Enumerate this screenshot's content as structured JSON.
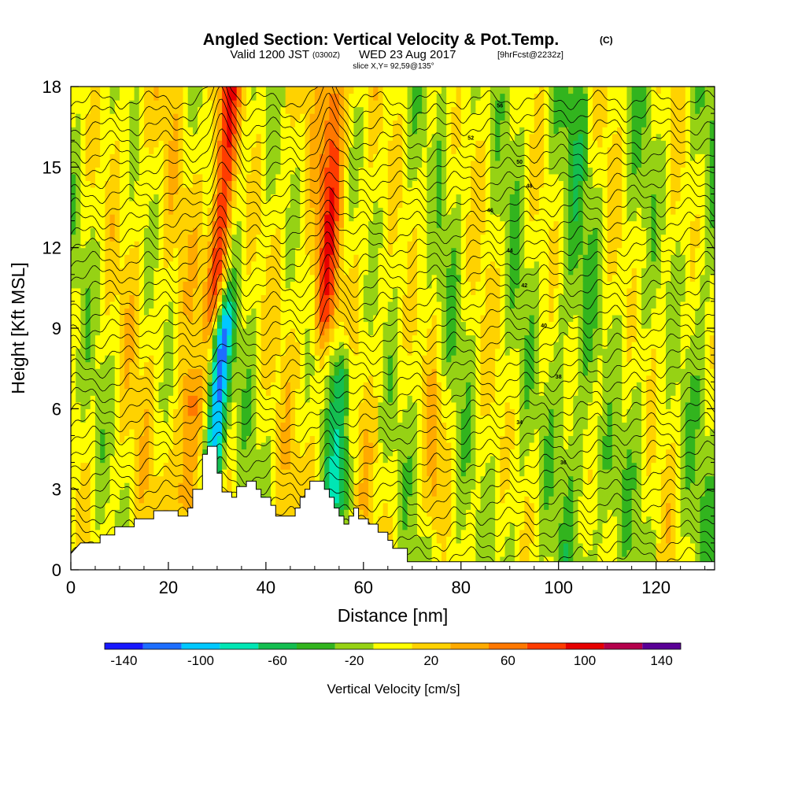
{
  "chart_data": {
    "type": "heatmap",
    "title": {
      "main": "Angled Section: Vertical Velocity & Pot.Temp.",
      "unit_tag": "(C)",
      "valid_prefix": "Valid 1200 JST",
      "valid_utc": "(0300Z)",
      "valid_date": "WED 23 Aug 2017",
      "forecast": "[9hrFcst@2232z]",
      "slice": "slice X,Y= 92,59@135°"
    },
    "xlabel": "Distance [nm]",
    "ylabel": "Height [Kft MSL]",
    "xlim": [
      0,
      132
    ],
    "ylim": [
      0,
      18
    ],
    "x_ticks": [
      0,
      20,
      40,
      60,
      80,
      100,
      120
    ],
    "y_ticks": [
      0,
      3,
      6,
      9,
      12,
      15,
      18
    ],
    "colorbar": {
      "label": "Vertical Velocity [cm/s]",
      "bins": [
        -150,
        -130,
        -110,
        -90,
        -70,
        -50,
        -30,
        -10,
        10,
        30,
        50,
        70,
        90,
        110,
        130,
        150
      ],
      "colors": [
        "#1818ff",
        "#1e6eff",
        "#00c8ff",
        "#00e6b4",
        "#14be50",
        "#32b41e",
        "#96d214",
        "#ffff00",
        "#ffd200",
        "#ffaa00",
        "#ff7800",
        "#ff3c00",
        "#e60000",
        "#b4004b",
        "#5a0096"
      ],
      "tick_labels": [
        "-140",
        "-100",
        "-60",
        "-20",
        "20",
        "60",
        "100",
        "140"
      ],
      "tick_values": [
        -140,
        -100,
        -60,
        -20,
        20,
        60,
        100,
        140
      ]
    },
    "vertical_velocity_features": [
      {
        "x": 0,
        "center_kft": 9,
        "value": 10
      },
      {
        "x": 31,
        "kft_range": [
          10,
          18
        ],
        "value": 100
      },
      {
        "x": 30,
        "kft_range": [
          4,
          9
        ],
        "value": -110
      },
      {
        "x": 53,
        "kft_range": [
          10,
          17.5
        ],
        "value": 80
      },
      {
        "x": 55,
        "kft_range": [
          3,
          7
        ],
        "value": -70
      },
      {
        "x": 24,
        "kft_range": [
          3,
          6
        ],
        "value": 70
      },
      {
        "x": 75,
        "kft_range": [
          3,
          6
        ],
        "value": 40
      },
      {
        "x": 110,
        "kft_range": [
          0,
          4
        ],
        "value": -10
      }
    ],
    "potential_temperature": {
      "levels_kft": [
        0.5,
        1.0,
        1.5,
        2.0,
        2.5,
        3.0,
        3.5,
        4.0,
        4.5,
        5.0,
        5.5,
        6.0,
        6.5,
        7.0,
        7.5,
        8.0,
        8.5,
        9.0,
        9.5,
        10.0,
        10.5,
        11.0,
        11.5,
        12.0,
        12.5,
        13.0,
        13.5,
        14.0,
        14.5,
        15.0,
        15.5,
        16.0,
        16.5,
        17.0,
        17.5
      ],
      "labels": [
        {
          "text": "34",
          "x": 92,
          "kft": 5.5
        },
        {
          "text": "36",
          "x": 101,
          "kft": 4.0
        },
        {
          "text": "38",
          "x": 100,
          "kft": 7.2
        },
        {
          "text": "40",
          "x": 97,
          "kft": 9.1
        },
        {
          "text": "42",
          "x": 93,
          "kft": 10.6
        },
        {
          "text": "44",
          "x": 90,
          "kft": 11.9
        },
        {
          "text": "46",
          "x": 86,
          "kft": 13.4
        },
        {
          "text": "48",
          "x": 94,
          "kft": 14.3
        },
        {
          "text": "50",
          "x": 92,
          "kft": 15.2
        },
        {
          "text": "52",
          "x": 82,
          "kft": 16.1
        },
        {
          "text": "56",
          "x": 88,
          "kft": 17.3
        }
      ]
    },
    "terrain_kft": [
      [
        0,
        0.6
      ],
      [
        2,
        1.0
      ],
      [
        6,
        1.0
      ],
      [
        6,
        1.3
      ],
      [
        9,
        1.3
      ],
      [
        9,
        1.6
      ],
      [
        13,
        1.6
      ],
      [
        13,
        1.9
      ],
      [
        17,
        1.9
      ],
      [
        17,
        2.2
      ],
      [
        22,
        2.2
      ],
      [
        22,
        2.0
      ],
      [
        24,
        2.0
      ],
      [
        24,
        2.3
      ],
      [
        25,
        2.3
      ],
      [
        25,
        3.0
      ],
      [
        27,
        3.0
      ],
      [
        27,
        4.3
      ],
      [
        28,
        4.3
      ],
      [
        28,
        4.6
      ],
      [
        30,
        4.6
      ],
      [
        30,
        3.6
      ],
      [
        31,
        3.6
      ],
      [
        31,
        2.9
      ],
      [
        33,
        2.9
      ],
      [
        33,
        2.7
      ],
      [
        34,
        2.7
      ],
      [
        34,
        3.1
      ],
      [
        36,
        3.1
      ],
      [
        36,
        3.3
      ],
      [
        38,
        3.3
      ],
      [
        38,
        3.0
      ],
      [
        39,
        3.0
      ],
      [
        39,
        2.7
      ],
      [
        41,
        2.7
      ],
      [
        41,
        2.4
      ],
      [
        42,
        2.4
      ],
      [
        42,
        2.0
      ],
      [
        46,
        2.0
      ],
      [
        46,
        2.3
      ],
      [
        47,
        2.3
      ],
      [
        47,
        2.7
      ],
      [
        48,
        2.7
      ],
      [
        48,
        3.0
      ],
      [
        49,
        3.0
      ],
      [
        49,
        3.3
      ],
      [
        52,
        3.3
      ],
      [
        52,
        3.0
      ],
      [
        53,
        3.0
      ],
      [
        53,
        2.7
      ],
      [
        54,
        2.7
      ],
      [
        54,
        2.3
      ],
      [
        55,
        2.3
      ],
      [
        55,
        2.0
      ],
      [
        56,
        2.0
      ],
      [
        56,
        1.7
      ],
      [
        57,
        1.7
      ],
      [
        57,
        2.0
      ],
      [
        58,
        2.0
      ],
      [
        58,
        2.3
      ],
      [
        59,
        2.3
      ],
      [
        59,
        1.9
      ],
      [
        61,
        1.9
      ],
      [
        61,
        1.7
      ],
      [
        63,
        1.7
      ],
      [
        63,
        1.4
      ],
      [
        65,
        1.4
      ],
      [
        65,
        1.1
      ],
      [
        66,
        1.1
      ],
      [
        66,
        0.8
      ],
      [
        69,
        0.8
      ],
      [
        69,
        0.3
      ],
      [
        132,
        0.3
      ]
    ]
  }
}
